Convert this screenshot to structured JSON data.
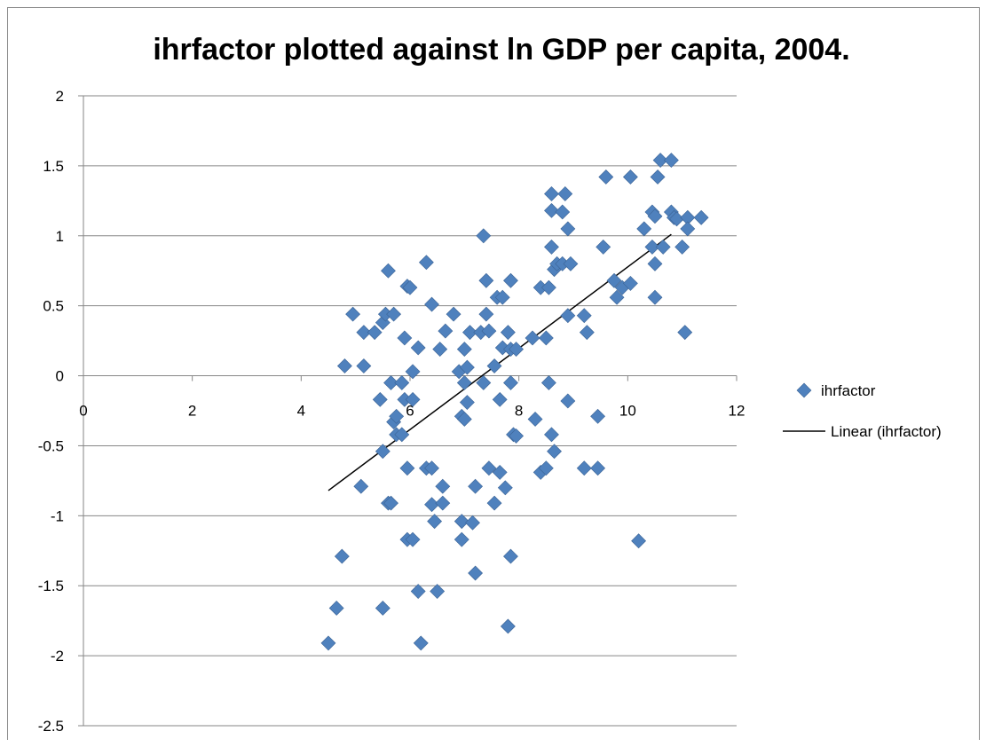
{
  "chart_data": {
    "type": "scatter",
    "title": "ihrfactor plotted against ln GDP per capita, 2004.",
    "xlabel": "",
    "ylabel": "",
    "xlim": [
      0,
      12
    ],
    "ylim": [
      -2.5,
      2
    ],
    "x_ticks": [
      "0",
      "2",
      "4",
      "6",
      "8",
      "10",
      "12"
    ],
    "y_ticks": [
      "2",
      "1.5",
      "1",
      "0.5",
      "0",
      "-0.5",
      "-1",
      "-1.5",
      "-2",
      "-2.5"
    ],
    "grid": "horizontal",
    "legend_position": "right",
    "series": [
      {
        "name": "ihrfactor",
        "marker": "diamond",
        "color": "#4f81bd",
        "points": [
          [
            4.5,
            -1.91
          ],
          [
            4.65,
            -1.66
          ],
          [
            4.75,
            -1.29
          ],
          [
            4.8,
            0.07
          ],
          [
            4.95,
            0.44
          ],
          [
            5.1,
            -0.79
          ],
          [
            5.15,
            0.31
          ],
          [
            5.15,
            0.07
          ],
          [
            5.35,
            0.31
          ],
          [
            5.45,
            -0.17
          ],
          [
            5.5,
            -0.54
          ],
          [
            5.5,
            0.38
          ],
          [
            5.5,
            -1.66
          ],
          [
            5.55,
            0.44
          ],
          [
            5.6,
            0.75
          ],
          [
            5.6,
            -0.91
          ],
          [
            5.65,
            -0.05
          ],
          [
            5.65,
            -0.91
          ],
          [
            5.7,
            0.44
          ],
          [
            5.7,
            -0.33
          ],
          [
            5.75,
            -0.29
          ],
          [
            5.75,
            -0.42
          ],
          [
            5.85,
            -0.05
          ],
          [
            5.85,
            -0.42
          ],
          [
            5.9,
            0.27
          ],
          [
            5.9,
            -0.17
          ],
          [
            5.95,
            0.64
          ],
          [
            5.95,
            -0.66
          ],
          [
            5.95,
            -1.17
          ],
          [
            6.0,
            0.63
          ],
          [
            6.05,
            -1.17
          ],
          [
            6.05,
            -0.17
          ],
          [
            6.05,
            0.03
          ],
          [
            6.15,
            0.2
          ],
          [
            6.15,
            -1.54
          ],
          [
            6.2,
            -1.91
          ],
          [
            6.3,
            0.81
          ],
          [
            6.3,
            -0.66
          ],
          [
            6.4,
            -0.92
          ],
          [
            6.4,
            -0.66
          ],
          [
            6.4,
            0.51
          ],
          [
            6.45,
            -1.04
          ],
          [
            6.5,
            -1.54
          ],
          [
            6.55,
            0.19
          ],
          [
            6.6,
            -0.79
          ],
          [
            6.6,
            -0.91
          ],
          [
            6.65,
            0.32
          ],
          [
            6.8,
            0.44
          ],
          [
            6.9,
            0.03
          ],
          [
            6.95,
            -0.29
          ],
          [
            6.95,
            -1.04
          ],
          [
            6.95,
            -1.17
          ],
          [
            7.0,
            -0.31
          ],
          [
            7.0,
            0.19
          ],
          [
            7.0,
            -0.05
          ],
          [
            7.05,
            0.06
          ],
          [
            7.05,
            -0.19
          ],
          [
            7.1,
            0.31
          ],
          [
            7.15,
            -1.05
          ],
          [
            7.2,
            -0.79
          ],
          [
            7.2,
            -1.41
          ],
          [
            7.3,
            0.31
          ],
          [
            7.35,
            -0.05
          ],
          [
            7.35,
            1.0
          ],
          [
            7.4,
            0.68
          ],
          [
            7.4,
            0.44
          ],
          [
            7.45,
            0.32
          ],
          [
            7.45,
            -0.66
          ],
          [
            7.55,
            0.07
          ],
          [
            7.55,
            -0.91
          ],
          [
            7.6,
            0.56
          ],
          [
            7.65,
            -0.17
          ],
          [
            7.65,
            -0.69
          ],
          [
            7.7,
            0.2
          ],
          [
            7.7,
            0.56
          ],
          [
            7.75,
            -0.8
          ],
          [
            7.8,
            0.31
          ],
          [
            7.8,
            -1.79
          ],
          [
            7.85,
            -0.05
          ],
          [
            7.85,
            0.19
          ],
          [
            7.85,
            0.68
          ],
          [
            7.85,
            -1.29
          ],
          [
            7.9,
            -0.42
          ],
          [
            7.95,
            -0.43
          ],
          [
            7.95,
            0.19
          ],
          [
            8.25,
            0.27
          ],
          [
            8.3,
            -0.31
          ],
          [
            8.4,
            0.63
          ],
          [
            8.4,
            -0.69
          ],
          [
            8.5,
            0.27
          ],
          [
            8.5,
            -0.66
          ],
          [
            8.55,
            -0.05
          ],
          [
            8.55,
            0.63
          ],
          [
            8.6,
            1.3
          ],
          [
            8.6,
            0.92
          ],
          [
            8.6,
            -0.42
          ],
          [
            8.6,
            1.18
          ],
          [
            8.65,
            0.76
          ],
          [
            8.65,
            -0.54
          ],
          [
            8.7,
            0.8
          ],
          [
            8.8,
            1.17
          ],
          [
            8.8,
            0.8
          ],
          [
            8.85,
            1.3
          ],
          [
            8.9,
            1.05
          ],
          [
            8.9,
            0.43
          ],
          [
            8.9,
            -0.18
          ],
          [
            8.95,
            0.8
          ],
          [
            9.2,
            0.43
          ],
          [
            9.2,
            -0.66
          ],
          [
            9.25,
            0.31
          ],
          [
            9.45,
            -0.66
          ],
          [
            9.45,
            -0.29
          ],
          [
            9.55,
            0.92
          ],
          [
            9.6,
            1.42
          ],
          [
            9.75,
            0.68
          ],
          [
            9.8,
            0.56
          ],
          [
            9.9,
            0.63
          ],
          [
            10.05,
            0.66
          ],
          [
            10.05,
            1.42
          ],
          [
            10.2,
            -1.18
          ],
          [
            10.3,
            1.05
          ],
          [
            10.45,
            1.17
          ],
          [
            10.45,
            0.92
          ],
          [
            10.5,
            0.8
          ],
          [
            10.5,
            1.14
          ],
          [
            10.5,
            0.56
          ],
          [
            10.55,
            1.42
          ],
          [
            10.6,
            1.54
          ],
          [
            10.65,
            0.92
          ],
          [
            10.8,
            1.54
          ],
          [
            10.8,
            1.17
          ],
          [
            10.85,
            1.13
          ],
          [
            10.9,
            1.12
          ],
          [
            11.0,
            0.92
          ],
          [
            11.05,
            0.31
          ],
          [
            11.1,
            1.13
          ],
          [
            11.1,
            1.05
          ],
          [
            11.35,
            1.13
          ]
        ]
      },
      {
        "name": "Linear (ihrfactor)",
        "type": "line",
        "color": "#000000",
        "points": [
          [
            4.5,
            -0.82
          ],
          [
            10.8,
            1.01
          ]
        ]
      }
    ]
  }
}
